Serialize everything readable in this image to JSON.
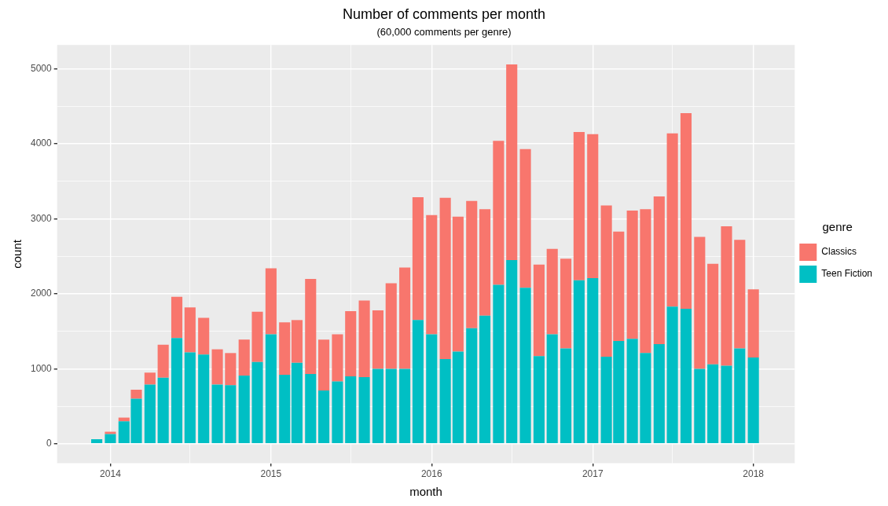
{
  "chart_data": {
    "type": "bar",
    "title": "Number of comments per month",
    "subtitle": "(60,000 comments per genre)",
    "xlabel": "month",
    "ylabel": "count",
    "legend_title": "genre",
    "legend": "right",
    "stacked": true,
    "grid": true,
    "x": [
      "2013-12",
      "2014-01",
      "2014-02",
      "2014-03",
      "2014-04",
      "2014-05",
      "2014-06",
      "2014-07",
      "2014-08",
      "2014-09",
      "2014-10",
      "2014-11",
      "2014-12",
      "2015-01",
      "2015-02",
      "2015-03",
      "2015-04",
      "2015-05",
      "2015-06",
      "2015-07",
      "2015-08",
      "2015-09",
      "2015-10",
      "2015-11",
      "2015-12",
      "2016-01",
      "2016-02",
      "2016-03",
      "2016-04",
      "2016-05",
      "2016-06",
      "2016-07",
      "2016-08",
      "2016-09",
      "2016-10",
      "2016-11",
      "2016-12",
      "2017-01",
      "2017-02",
      "2017-03",
      "2017-04",
      "2017-05",
      "2017-06",
      "2017-07",
      "2017-08",
      "2017-09",
      "2017-10",
      "2017-11",
      "2017-12",
      "2018-01"
    ],
    "series": [
      {
        "name": "Teen Fiction",
        "color": "#00bfc4",
        "values": [
          60,
          130,
          300,
          600,
          790,
          880,
          1410,
          1220,
          1190,
          790,
          780,
          910,
          1090,
          1460,
          920,
          1080,
          930,
          710,
          830,
          900,
          890,
          1000,
          1000,
          1000,
          1650,
          1460,
          1130,
          1230,
          1540,
          1710,
          2120,
          2450,
          2080,
          1170,
          1460,
          1270,
          2180,
          2210,
          1160,
          1370,
          1400,
          1210,
          1330,
          1830,
          1800,
          1000,
          1060,
          1040,
          1270,
          1150
        ]
      },
      {
        "name": "Classics",
        "color": "#f8766d",
        "values": [
          0,
          30,
          50,
          120,
          160,
          440,
          550,
          600,
          490,
          470,
          430,
          480,
          670,
          880,
          700,
          570,
          1270,
          680,
          630,
          870,
          1020,
          780,
          1140,
          1350,
          1640,
          1590,
          2150,
          1800,
          1700,
          1420,
          1920,
          2610,
          1850,
          1220,
          1140,
          1200,
          1980,
          1920,
          2020,
          1460,
          1710,
          1920,
          1970,
          2310,
          2610,
          1760,
          1340,
          1860,
          1450,
          910
        ]
      }
    ],
    "xlim": [
      "2013-09-02",
      "2018-04-05"
    ],
    "xticks": [
      {
        "value": "2014",
        "label": "2014"
      },
      {
        "value": "2014-07",
        "label": null
      },
      {
        "value": "2015",
        "label": "2015"
      },
      {
        "value": "2015-07",
        "label": null
      },
      {
        "value": "2016",
        "label": "2016"
      },
      {
        "value": "2016-07",
        "label": null
      },
      {
        "value": "2017",
        "label": "2017"
      },
      {
        "value": "2017-07",
        "label": null
      },
      {
        "value": "2018",
        "label": "2018"
      }
    ],
    "ylim": [
      -260,
      5320
    ],
    "yticks": [
      0,
      {
        "value": 500,
        "label": null
      },
      1000,
      {
        "value": 1500,
        "label": null
      },
      2000,
      {
        "value": 2500,
        "label": null
      },
      3000,
      {
        "value": 3500,
        "label": null
      },
      4000,
      {
        "value": 4500,
        "label": null
      },
      5000
    ]
  }
}
